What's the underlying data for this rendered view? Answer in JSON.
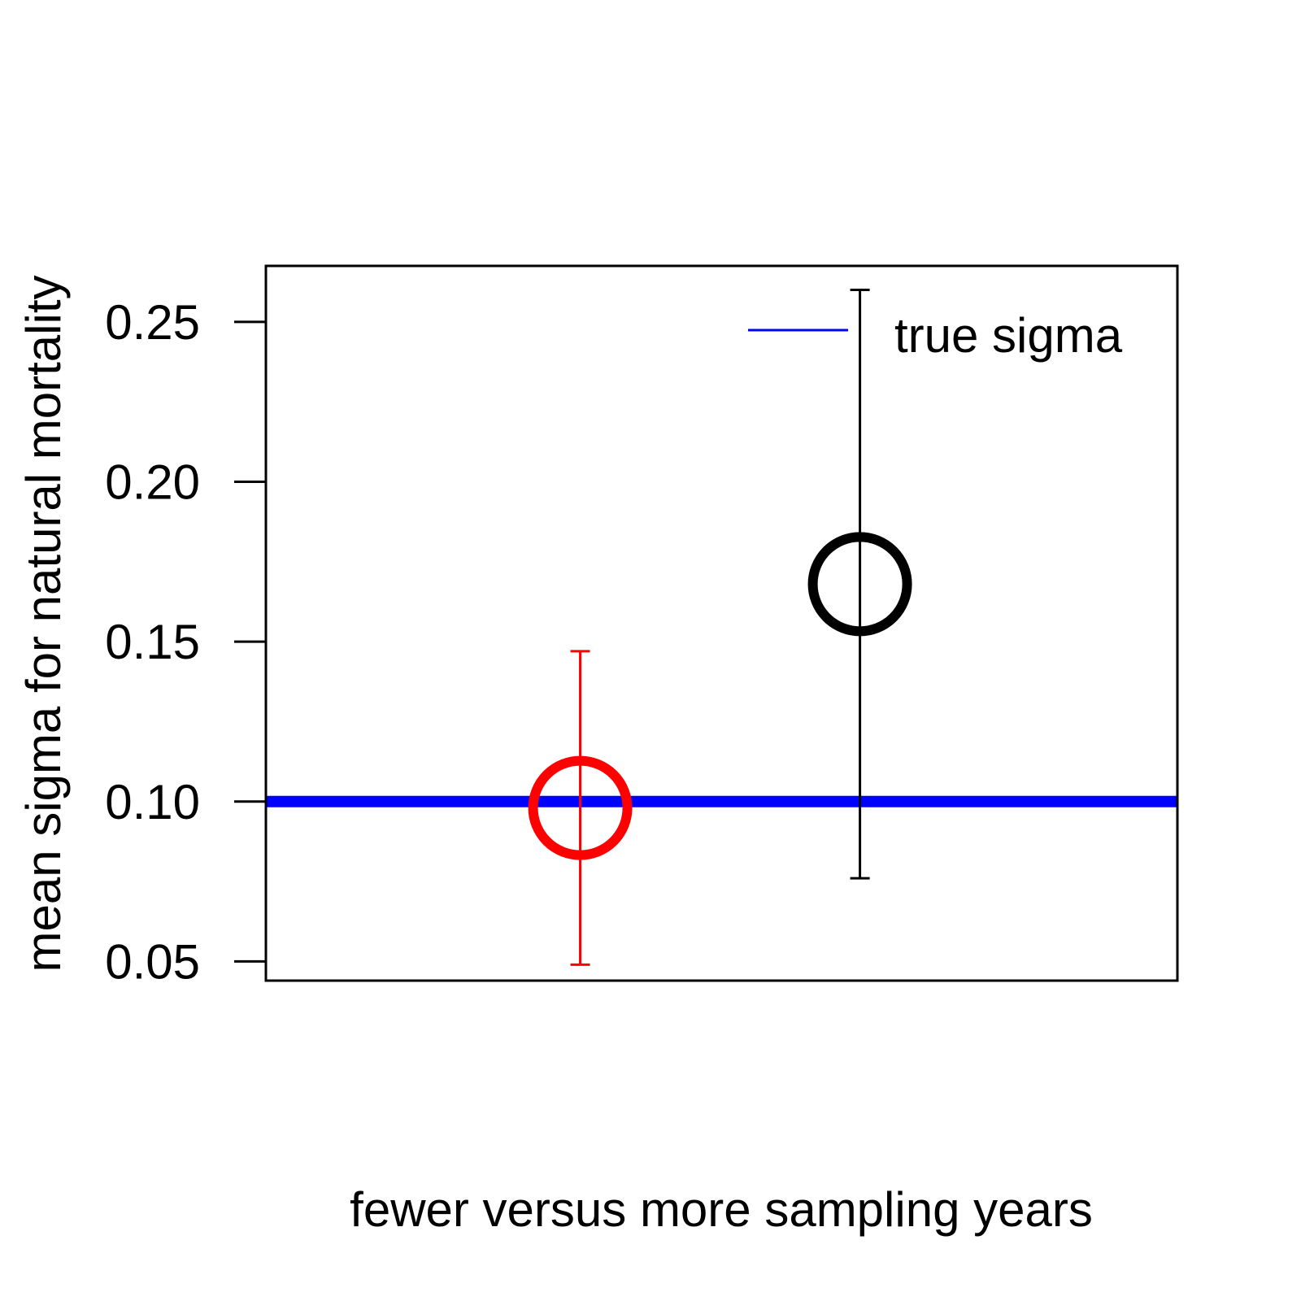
{
  "chart_data": {
    "type": "scatter",
    "title": "",
    "xlabel": "fewer versus more sampling years",
    "ylabel": "mean sigma for natural mortality",
    "xlim": [
      0.5,
      3.4
    ],
    "ylim": [
      0.044,
      0.2675
    ],
    "grid": false,
    "y_ticks": [
      {
        "value": 0.05,
        "label": "0.05"
      },
      {
        "value": 0.1,
        "label": "0.10"
      },
      {
        "value": 0.15,
        "label": "0.15"
      },
      {
        "value": 0.2,
        "label": "0.20"
      },
      {
        "value": 0.25,
        "label": "0.25"
      }
    ],
    "points": [
      {
        "x": 1.5,
        "y": 0.098,
        "lower": 0.049,
        "upper": 0.147,
        "color": "#ff0000"
      },
      {
        "x": 2.39,
        "y": 0.168,
        "lower": 0.076,
        "upper": 0.26,
        "color": "#000000"
      }
    ],
    "reference_line": {
      "y": 0.1,
      "color": "#0000ff",
      "name": "true sigma"
    },
    "legend": {
      "position": "top-right",
      "entries": [
        {
          "label": "true sigma",
          "color": "#0000ff"
        }
      ]
    }
  }
}
